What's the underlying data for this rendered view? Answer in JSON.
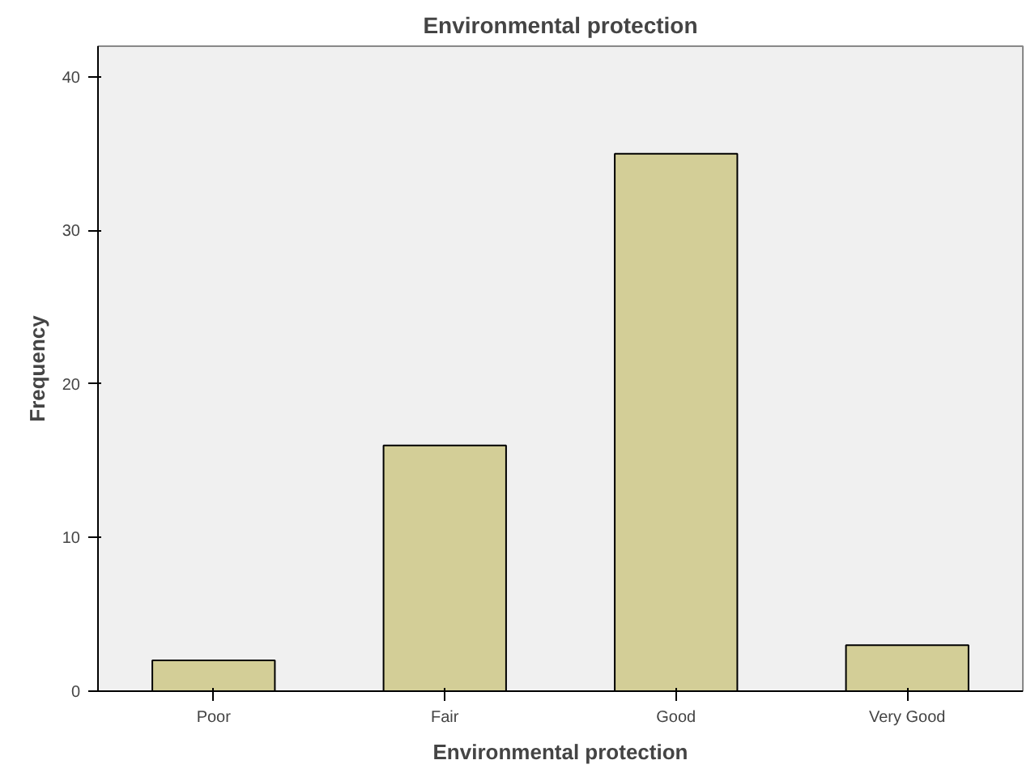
{
  "chart_data": {
    "type": "bar",
    "title": "Environmental protection",
    "xlabel": "Environmental protection",
    "ylabel": "Frequency",
    "categories": [
      "Poor",
      "Fair",
      "Good",
      "Very Good"
    ],
    "values": [
      2,
      16,
      35,
      3
    ],
    "color": "#d3ce97",
    "ylim": [
      0,
      42
    ],
    "yticks": [
      0,
      10,
      20,
      30,
      40
    ],
    "grid": false
  }
}
